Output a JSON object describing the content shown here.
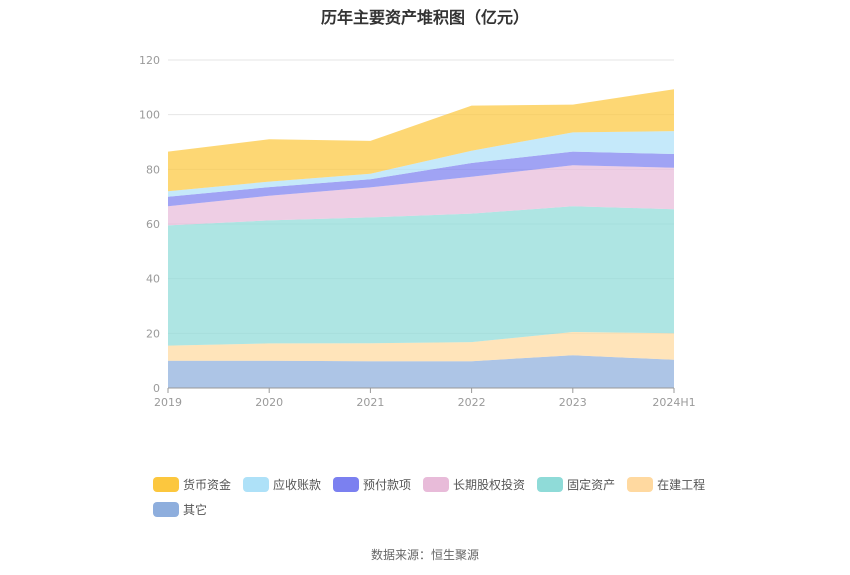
{
  "chart_data": {
    "type": "area",
    "stacked": true,
    "title": "历年主要资产堆积图（亿元）",
    "source": "数据来源：恒生聚源",
    "categories": [
      "2019",
      "2020",
      "2021",
      "2022",
      "2023",
      "2024H1"
    ],
    "ylim": [
      0,
      120
    ],
    "yticks": [
      "0",
      "20",
      "40",
      "60",
      "80",
      "100",
      "120"
    ],
    "grid": true,
    "legend_position": "bottom",
    "series": [
      {
        "name": "其它",
        "color": "#8eaedd",
        "values": [
          10.0,
          10.0,
          9.8,
          9.8,
          12.0,
          10.3
        ]
      },
      {
        "name": "在建工程",
        "color": "#ffd9a0",
        "values": [
          5.5,
          6.3,
          6.6,
          7.0,
          8.5,
          9.7
        ]
      },
      {
        "name": "固定资产",
        "color": "#8fdbd8",
        "values": [
          44.0,
          45.0,
          46.0,
          47.0,
          46.0,
          45.4
        ]
      },
      {
        "name": "长期股权投资",
        "color": "#e8bbd9",
        "values": [
          7.0,
          9.0,
          11.0,
          13.5,
          15.0,
          15.2
        ]
      },
      {
        "name": "预付款项",
        "color": "#7b80f0",
        "values": [
          3.5,
          3.2,
          3.0,
          5.0,
          5.0,
          5.0
        ]
      },
      {
        "name": "应收账款",
        "color": "#aee1f8",
        "values": [
          2.0,
          2.0,
          2.0,
          4.5,
          7.0,
          8.4
        ]
      },
      {
        "name": "货币资金",
        "color": "#fcc73e",
        "values": [
          14.5,
          15.5,
          12.0,
          16.5,
          10.2,
          15.3
        ]
      }
    ]
  },
  "legend": {
    "row1": [
      {
        "label": "货币资金",
        "color": "#fcc73e"
      },
      {
        "label": "应收账款",
        "color": "#aee1f8"
      },
      {
        "label": "预付款项",
        "color": "#7b80f0"
      },
      {
        "label": "长期股权投资",
        "color": "#e8bbd9"
      },
      {
        "label": "固定资产",
        "color": "#8fdbd8"
      },
      {
        "label": "在建工程",
        "color": "#ffd9a0"
      }
    ],
    "row2": [
      {
        "label": "其它",
        "color": "#8eaedd"
      }
    ]
  }
}
